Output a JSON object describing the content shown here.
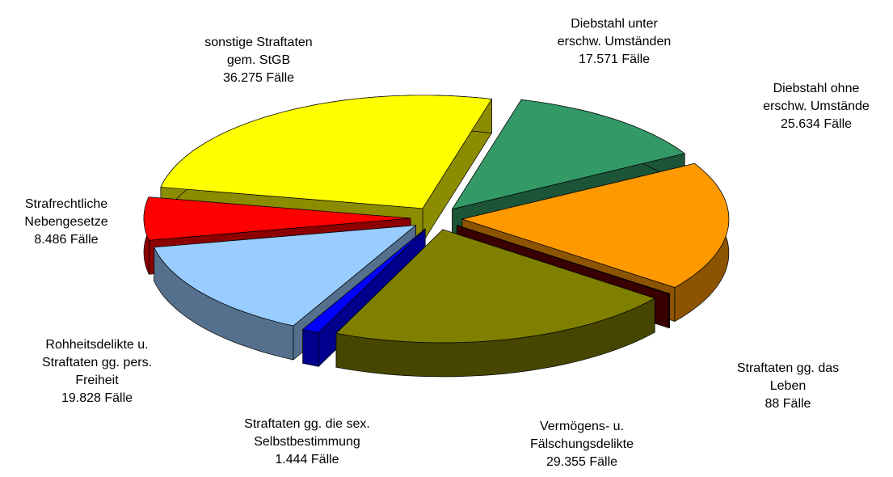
{
  "chart_data": {
    "type": "pie",
    "categories": [
      "Diebstahl unter\nerschw. Umständen",
      "Diebstahl ohne\nerschw. Umstände",
      "Straftaten gg. das\nLeben",
      "Vermögens- u.\nFälschungsdelikte",
      "Straftaten gg. die sex.\nSelbstbestimmung",
      "Rohheitsdelikte u.\nStraftaten gg. pers.\nFreiheit",
      "Strafrechtliche\nNebengesetze",
      "sonstige Straftaten\ngem. StGB"
    ],
    "values": [
      17571,
      25634,
      88,
      29355,
      1444,
      19828,
      8486,
      36275
    ],
    "value_labels": [
      "17.571 Fälle",
      "25.634 Fälle",
      "88 Fälle",
      "29.355 Fälle",
      "1.444 Fälle",
      "19.828 Fälle",
      "8.486 Fälle",
      "36.275 Fälle"
    ],
    "colors": [
      "#339966",
      "#ff9900",
      "#660000",
      "#808000",
      "#0000ff",
      "#99ccff",
      "#ff0000",
      "#ffff00"
    ]
  }
}
